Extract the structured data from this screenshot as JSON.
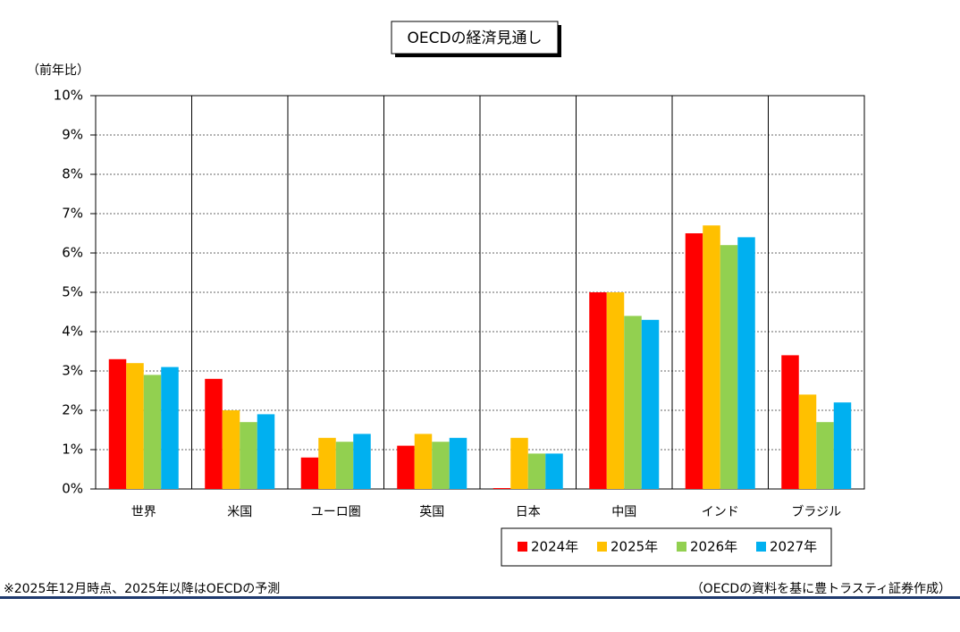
{
  "chart_data": {
    "type": "bar",
    "title": "OECDの経済見通し",
    "y_label": "（前年比）",
    "categories": [
      "世界",
      "米国",
      "ユーロ圏",
      "英国",
      "日本",
      "中国",
      "インド",
      "ブラジル"
    ],
    "series": [
      {
        "name": "2024年",
        "color": "#ff0000",
        "values": [
          3.3,
          2.8,
          0.8,
          1.1,
          0,
          5.0,
          6.5,
          3.4
        ]
      },
      {
        "name": "2025年",
        "color": "#ffc000",
        "values": [
          3.2,
          2.0,
          1.3,
          1.4,
          1.3,
          5.0,
          6.7,
          2.4
        ]
      },
      {
        "name": "2026年",
        "color": "#92d050",
        "values": [
          2.9,
          1.7,
          1.2,
          1.2,
          0.9,
          4.4,
          6.2,
          1.7
        ]
      },
      {
        "name": "2027年",
        "color": "#00b0f0",
        "values": [
          3.1,
          1.9,
          1.4,
          1.3,
          0.9,
          4.3,
          6.4,
          2.2
        ]
      }
    ],
    "ylim": [
      0,
      10
    ],
    "yticks": [
      {
        "value": 0,
        "label": "0%"
      },
      {
        "value": 1,
        "label": "1%"
      },
      {
        "value": 2,
        "label": "2%"
      },
      {
        "value": 3,
        "label": "3%"
      },
      {
        "value": 4,
        "label": "4%"
      },
      {
        "value": 5,
        "label": "5%"
      },
      {
        "value": 6,
        "label": "6%"
      },
      {
        "value": 7,
        "label": "7%"
      },
      {
        "value": 8,
        "label": "8%"
      },
      {
        "value": 9,
        "label": "9%"
      },
      {
        "value": 10,
        "label": "10%"
      }
    ],
    "grid": true,
    "footnote": "※2025年12月時点、2025年以降はOECDの予測",
    "source": "（OECDの資料を基に豊トラスティ証券作成）"
  }
}
